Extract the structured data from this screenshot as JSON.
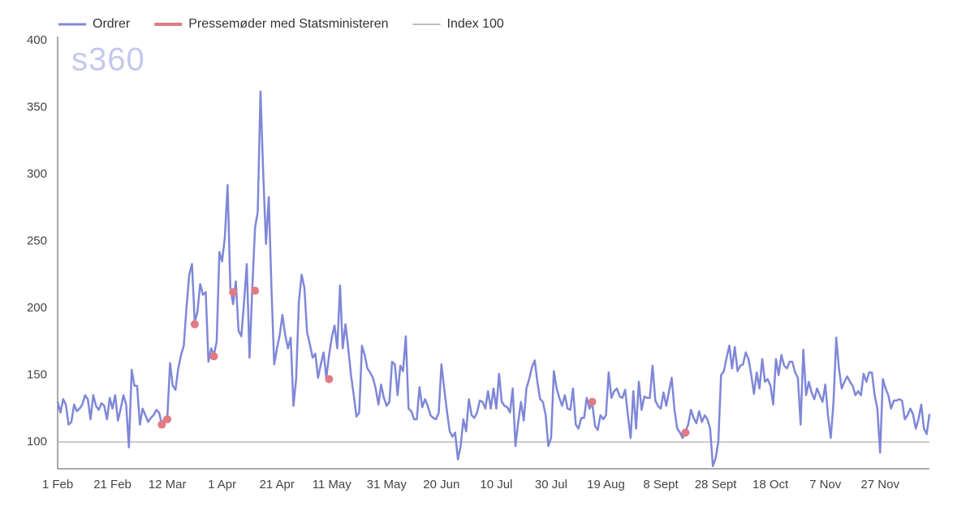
{
  "chart_data": {
    "type": "line",
    "watermark": "s360",
    "categories": [
      "1 Feb",
      null,
      null,
      null,
      null,
      null,
      null,
      null,
      null,
      null,
      null,
      null,
      null,
      null,
      null,
      null,
      null,
      null,
      null,
      null,
      "21 Feb",
      null,
      null,
      null,
      null,
      null,
      null,
      null,
      null,
      null,
      null,
      null,
      null,
      null,
      null,
      null,
      null,
      null,
      null,
      null,
      "12 Mar",
      null,
      null,
      null,
      null,
      null,
      null,
      null,
      null,
      null,
      null,
      null,
      null,
      null,
      null,
      null,
      null,
      null,
      null,
      null,
      "1 Apr",
      null,
      null,
      null,
      null,
      null,
      null,
      null,
      null,
      null,
      null,
      null,
      null,
      null,
      null,
      null,
      null,
      null,
      null,
      null,
      "21 Apr",
      null,
      null,
      null,
      null,
      null,
      null,
      null,
      null,
      null,
      null,
      null,
      null,
      null,
      null,
      null,
      null,
      null,
      null,
      null,
      "11 May",
      null,
      null,
      null,
      null,
      null,
      null,
      null,
      null,
      null,
      null,
      null,
      null,
      null,
      null,
      null,
      null,
      null,
      null,
      null,
      "31 May",
      null,
      null,
      null,
      null,
      null,
      null,
      null,
      null,
      null,
      null,
      null,
      null,
      null,
      null,
      null,
      null,
      null,
      null,
      null,
      "20 Jun",
      null,
      null,
      null,
      null,
      null,
      null,
      null,
      null,
      null,
      null,
      null,
      null,
      null,
      null,
      null,
      null,
      null,
      null,
      null,
      "10 Jul",
      null,
      null,
      null,
      null,
      null,
      null,
      null,
      null,
      null,
      null,
      null,
      null,
      null,
      null,
      null,
      null,
      null,
      null,
      null,
      "30 Jul",
      null,
      null,
      null,
      null,
      null,
      null,
      null,
      null,
      null,
      null,
      null,
      null,
      null,
      null,
      null,
      null,
      null,
      null,
      null,
      "19 Aug",
      null,
      null,
      null,
      null,
      null,
      null,
      null,
      null,
      null,
      null,
      null,
      null,
      null,
      null,
      null,
      null,
      null,
      null,
      null,
      "8 Sept",
      null,
      null,
      null,
      null,
      null,
      null,
      null,
      null,
      null,
      null,
      null,
      null,
      null,
      null,
      null,
      null,
      null,
      null,
      null,
      "28 Sept",
      null,
      null,
      null,
      null,
      null,
      null,
      null,
      null,
      null,
      null,
      null,
      null,
      null,
      null,
      null,
      null,
      null,
      null,
      null,
      "18 Oct",
      null,
      null,
      null,
      null,
      null,
      null,
      null,
      null,
      null,
      null,
      null,
      null,
      null,
      null,
      null,
      null,
      null,
      null,
      null,
      "7 Nov",
      null,
      null,
      null,
      null,
      null,
      null,
      null,
      null,
      null,
      null,
      null,
      null,
      null,
      null,
      null,
      null,
      null,
      null,
      null,
      "27 Nov",
      null,
      null,
      null,
      null,
      null,
      null,
      null,
      null,
      null,
      null,
      null,
      null,
      null,
      null,
      null,
      null,
      null,
      null
    ],
    "series": [
      {
        "name": "Ordrer",
        "color": "#7f87d8",
        "kind": "line",
        "values": [
          130,
          122,
          132,
          128,
          113,
          115,
          128,
          123,
          125,
          128,
          135,
          132,
          117,
          135,
          127,
          124,
          129,
          127,
          117,
          133,
          125,
          135,
          116,
          125,
          135,
          128,
          96,
          154,
          142,
          142,
          113,
          125,
          120,
          115,
          118,
          120,
          124,
          122,
          113,
          118,
          118,
          159,
          142,
          139,
          155,
          165,
          172,
          200,
          225,
          233,
          190,
          197,
          218,
          210,
          212,
          160,
          170,
          165,
          175,
          242,
          235,
          253,
          292,
          215,
          203,
          220,
          183,
          179,
          205,
          233,
          163,
          215,
          260,
          272,
          362,
          300,
          248,
          283,
          215,
          158,
          170,
          180,
          195,
          180,
          170,
          178,
          127,
          147,
          205,
          225,
          215,
          182,
          173,
          163,
          166,
          148,
          158,
          167,
          148,
          165,
          178,
          187,
          170,
          217,
          170,
          188,
          170,
          150,
          135,
          119,
          122,
          172,
          165,
          155,
          152,
          148,
          140,
          128,
          143,
          133,
          127,
          130,
          160,
          158,
          135,
          157,
          153,
          179,
          125,
          123,
          117,
          117,
          141,
          126,
          132,
          127,
          120,
          118,
          117,
          122,
          158,
          140,
          123,
          108,
          104,
          107,
          87,
          97,
          117,
          108,
          132,
          120,
          118,
          122,
          131,
          130,
          125,
          138,
          125,
          140,
          125,
          151,
          130,
          127,
          126,
          122,
          140,
          97,
          115,
          130,
          116,
          140,
          147,
          156,
          161,
          145,
          132,
          130,
          120,
          97,
          103,
          153,
          140,
          133,
          127,
          135,
          125,
          124,
          140,
          113,
          110,
          118,
          118,
          133,
          125,
          129,
          112,
          109,
          120,
          117,
          120,
          152,
          133,
          138,
          140,
          134,
          133,
          139,
          120,
          103,
          138,
          110,
          145,
          124,
          134,
          133,
          133,
          157,
          131,
          127,
          125,
          137,
          127,
          138,
          148,
          124,
          110,
          107,
          103,
          108,
          113,
          124,
          118,
          114,
          123,
          115,
          120,
          117,
          110,
          82,
          88,
          100,
          150,
          153,
          163,
          172,
          155,
          171,
          153,
          157,
          158,
          167,
          162,
          150,
          136,
          152,
          140,
          162,
          145,
          147,
          142,
          128,
          162,
          150,
          165,
          157,
          155,
          160,
          160,
          152,
          148,
          113,
          169,
          135,
          145,
          137,
          132,
          140,
          135,
          130,
          143,
          120,
          103,
          130,
          178,
          155,
          140,
          145,
          149,
          145,
          142,
          135,
          138,
          135,
          151,
          145,
          152,
          152,
          135,
          125,
          92,
          147,
          140,
          135,
          125,
          131,
          131,
          132,
          131,
          117,
          120,
          125,
          121,
          110,
          117,
          128,
          110,
          106,
          121
        ]
      },
      {
        "name": "Pressemøder med Statsministeren",
        "color": "#e07b86",
        "kind": "dots",
        "values": [
          null,
          null,
          null,
          null,
          null,
          null,
          null,
          null,
          null,
          null,
          null,
          null,
          null,
          null,
          null,
          null,
          null,
          null,
          null,
          null,
          null,
          null,
          null,
          null,
          null,
          null,
          null,
          null,
          null,
          null,
          null,
          null,
          null,
          null,
          null,
          null,
          null,
          null,
          113,
          null,
          117,
          null,
          null,
          null,
          null,
          null,
          null,
          null,
          null,
          null,
          188,
          null,
          null,
          null,
          null,
          null,
          null,
          164,
          null,
          null,
          null,
          null,
          null,
          null,
          212,
          null,
          null,
          null,
          null,
          null,
          null,
          null,
          213,
          null,
          null,
          null,
          null,
          null,
          null,
          null,
          null,
          null,
          null,
          null,
          null,
          null,
          null,
          null,
          null,
          null,
          null,
          null,
          null,
          null,
          null,
          null,
          null,
          null,
          null,
          147,
          null,
          null,
          null,
          null,
          null,
          null,
          null,
          null,
          null,
          null,
          null,
          null,
          null,
          null,
          null,
          null,
          null,
          null,
          null,
          null,
          null,
          null,
          null,
          null,
          null,
          null,
          null,
          null,
          null,
          null,
          null,
          null,
          null,
          null,
          null,
          null,
          null,
          null,
          null,
          null,
          null,
          null,
          null,
          null,
          null,
          null,
          null,
          null,
          null,
          null,
          null,
          null,
          null,
          null,
          null,
          null,
          null,
          null,
          null,
          null,
          null,
          null,
          null,
          null,
          null,
          null,
          null,
          null,
          null,
          null,
          null,
          null,
          null,
          null,
          null,
          null,
          null,
          null,
          null,
          null,
          null,
          null,
          null,
          null,
          null,
          null,
          null,
          null,
          null,
          null,
          null,
          null,
          null,
          null,
          null,
          130,
          null,
          null,
          null,
          null,
          null,
          null,
          null,
          null,
          null,
          null,
          null,
          null,
          null,
          null,
          null,
          null,
          null,
          null,
          null,
          null,
          null,
          null,
          null,
          null,
          null,
          null,
          null,
          null,
          null,
          null,
          null,
          null,
          null,
          107,
          null,
          null,
          null,
          null,
          null,
          null,
          null,
          null,
          null,
          null,
          null,
          null,
          null,
          null,
          null,
          null,
          null,
          null,
          null,
          null,
          null,
          null,
          null,
          null,
          null,
          null,
          null,
          null,
          null,
          null,
          null,
          null,
          null,
          null,
          null,
          null,
          null,
          null,
          null,
          null,
          null,
          null,
          null,
          null,
          null,
          null,
          null,
          null,
          null,
          null,
          null,
          null,
          null,
          null,
          null,
          null,
          null,
          null,
          null,
          null,
          null,
          null,
          null,
          null,
          null,
          null,
          null,
          null,
          null,
          null,
          null,
          null,
          null,
          null,
          null,
          null,
          null,
          null,
          null,
          null,
          null,
          null,
          null,
          null,
          null,
          null,
          null,
          null,
          null
        ]
      }
    ],
    "reference_line": {
      "name": "Index 100",
      "value": 100,
      "color": "#777777"
    },
    "ylim": [
      80,
      400
    ],
    "yticks": [
      100,
      150,
      200,
      250,
      300,
      350,
      400
    ],
    "grid": false,
    "legend": "top"
  }
}
